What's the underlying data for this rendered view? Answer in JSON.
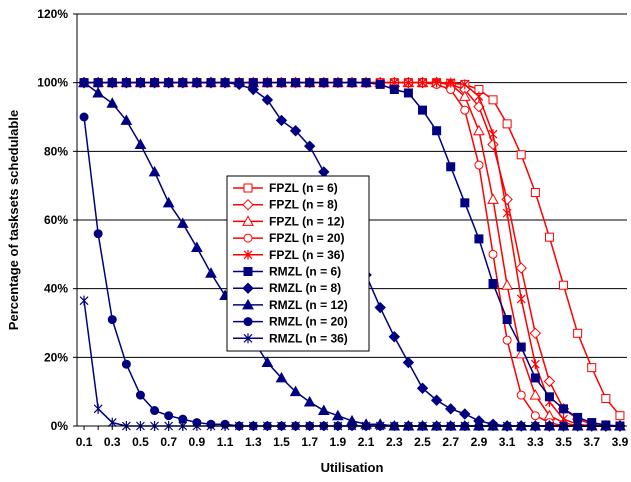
{
  "chart_data": {
    "type": "line",
    "title": "",
    "xlabel": "Utilisation",
    "ylabel": "Percentage of tasksets schedulable",
    "x": [
      0.1,
      0.2,
      0.3,
      0.4,
      0.5,
      0.6,
      0.7,
      0.8,
      0.9,
      1.0,
      1.1,
      1.2,
      1.3,
      1.4,
      1.5,
      1.6,
      1.7,
      1.8,
      1.9,
      2.0,
      2.1,
      2.2,
      2.3,
      2.4,
      2.5,
      2.6,
      2.7,
      2.8,
      2.9,
      3.0,
      3.1,
      3.2,
      3.3,
      3.4,
      3.5,
      3.6,
      3.7,
      3.8,
      3.9
    ],
    "x_tick_labels": [
      "0.1",
      "0.3",
      "0.5",
      "0.7",
      "0.9",
      "1.1",
      "1.3",
      "1.5",
      "1.7",
      "1.9",
      "2.1",
      "2.3",
      "2.5",
      "2.7",
      "2.9",
      "3.1",
      "3.3",
      "3.5",
      "3.7",
      "3.9"
    ],
    "y_tick_labels": [
      "0%",
      "20%",
      "40%",
      "60%",
      "80%",
      "100%",
      "120%"
    ],
    "ylim": [
      0,
      120
    ],
    "grid": true,
    "legend_position": "center",
    "series": [
      {
        "name": "FPZL (n = 6)",
        "color": "#ff0000",
        "marker": "square-open",
        "values": [
          100,
          100,
          100,
          100,
          100,
          100,
          100,
          100,
          100,
          100,
          100,
          100,
          100,
          100,
          100,
          100,
          100,
          100,
          100,
          100,
          100,
          100,
          100,
          100,
          100,
          100,
          99.8,
          99.5,
          98,
          95,
          88,
          79,
          68,
          55,
          41,
          27,
          17,
          8,
          3
        ]
      },
      {
        "name": "FPZL (n = 8)",
        "color": "#ff0000",
        "marker": "diamond-open",
        "values": [
          100,
          100,
          100,
          100,
          100,
          100,
          100,
          100,
          100,
          100,
          100,
          100,
          100,
          100,
          100,
          100,
          100,
          100,
          100,
          100,
          100,
          100,
          100,
          100,
          100,
          100,
          99.5,
          98,
          93,
          82,
          66,
          46,
          27,
          13,
          5,
          2,
          0.5,
          0,
          0
        ]
      },
      {
        "name": "FPZL (n = 12)",
        "color": "#ff0000",
        "marker": "triangle-open",
        "values": [
          100,
          100,
          100,
          100,
          100,
          100,
          100,
          100,
          100,
          100,
          100,
          100,
          100,
          100,
          100,
          100,
          100,
          100,
          100,
          100,
          100,
          100,
          100,
          100,
          100,
          100,
          99.5,
          96,
          86,
          66,
          41,
          21,
          9,
          3,
          1,
          0,
          0,
          0,
          0
        ]
      },
      {
        "name": "FPZL (n = 20)",
        "color": "#ff0000",
        "marker": "circle-open",
        "values": [
          100,
          100,
          100,
          100,
          100,
          100,
          100,
          100,
          100,
          100,
          100,
          100,
          100,
          100,
          100,
          100,
          100,
          100,
          100,
          100,
          100,
          100,
          100,
          100,
          100,
          99.5,
          98,
          92,
          76,
          50,
          25,
          9,
          3,
          1,
          0,
          0,
          0,
          0,
          0
        ]
      },
      {
        "name": "FPZL (n = 36)",
        "color": "#ff0000",
        "marker": "star",
        "values": [
          100,
          100,
          100,
          100,
          100,
          100,
          100,
          100,
          100,
          100,
          100,
          100,
          100,
          100,
          100,
          100,
          100,
          100,
          100,
          100,
          100,
          100,
          100,
          100,
          100,
          100,
          100,
          99.5,
          96,
          85,
          62,
          37,
          18,
          7,
          2,
          0.5,
          0,
          0,
          0
        ]
      },
      {
        "name": "RMZL (n = 6)",
        "color": "#000080",
        "marker": "square",
        "values": [
          100,
          100,
          100,
          100,
          100,
          100,
          100,
          100,
          100,
          100,
          100,
          100,
          100,
          100,
          100,
          100,
          100,
          100,
          100,
          100,
          100,
          99.5,
          98,
          97,
          92,
          86,
          75.5,
          65,
          54.5,
          41.5,
          31,
          23,
          14,
          8.5,
          5,
          2.5,
          1,
          0.3,
          0
        ]
      },
      {
        "name": "RMZL (n = 8)",
        "color": "#000080",
        "marker": "diamond",
        "values": [
          100,
          100,
          100,
          100,
          100,
          100,
          100,
          100,
          100,
          100,
          100,
          99.5,
          98,
          95,
          89,
          86,
          81.5,
          74,
          67,
          57,
          44,
          34.5,
          26,
          18.5,
          11,
          7.5,
          5,
          3.5,
          1.5,
          0.5,
          0,
          0,
          0,
          0,
          0,
          0,
          0,
          0,
          0
        ]
      },
      {
        "name": "RMZL (n = 12)",
        "color": "#000080",
        "marker": "triangle",
        "values": [
          100,
          97,
          94,
          89,
          82,
          74,
          65,
          59,
          52,
          44.5,
          38,
          32,
          25,
          18.5,
          14,
          10,
          7,
          4.5,
          3,
          1.5,
          0.5,
          0.5,
          0,
          0,
          0,
          0,
          0,
          0,
          0,
          0,
          0,
          0,
          0,
          0,
          0,
          0,
          0,
          0,
          0
        ]
      },
      {
        "name": "RMZL (n = 20)",
        "color": "#000080",
        "marker": "circle",
        "values": [
          90,
          56,
          31,
          18,
          9,
          4.5,
          3,
          2,
          1,
          0.5,
          0.5,
          0,
          0,
          0,
          0,
          0,
          0,
          0,
          0,
          0,
          0,
          0,
          0,
          0,
          0,
          0,
          0,
          0,
          0,
          0,
          0,
          0,
          0,
          0,
          0,
          0,
          0,
          0,
          0
        ]
      },
      {
        "name": "RMZL (n = 36)",
        "color": "#000080",
        "marker": "star",
        "values": [
          36.5,
          5,
          1,
          0,
          0,
          0,
          0,
          0,
          0,
          0,
          0,
          0,
          0,
          0,
          0,
          0,
          0,
          0,
          0,
          0,
          0,
          0,
          0,
          0,
          0,
          0,
          0,
          0,
          0,
          0,
          0,
          0,
          0,
          0,
          0,
          0,
          0,
          0,
          0
        ]
      }
    ]
  }
}
